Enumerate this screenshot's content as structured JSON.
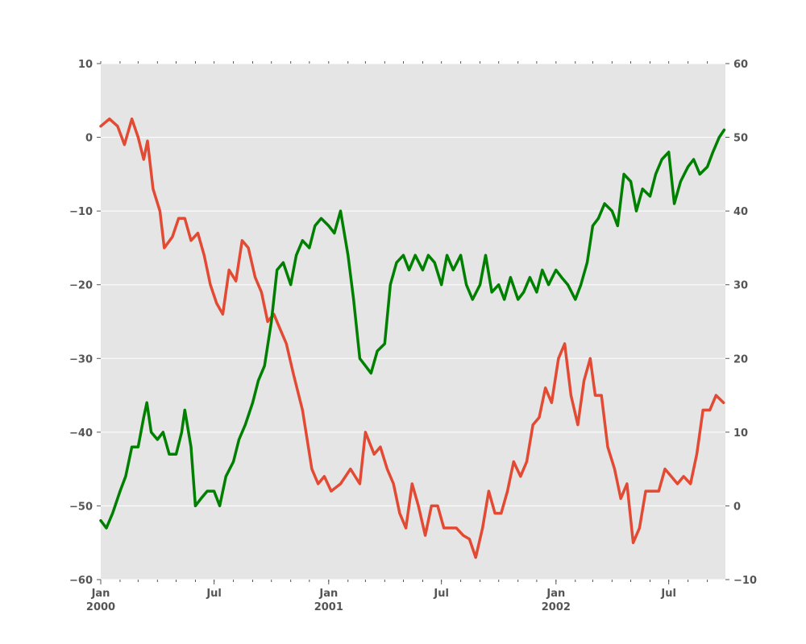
{
  "chart_data": {
    "type": "line",
    "title": "",
    "xlabel": "",
    "ylabel": "",
    "secondary_ylabel": "",
    "x_range": [
      "2000-01-01",
      "2002-09-30"
    ],
    "ylim": [
      -60,
      10
    ],
    "ylim_secondary": [
      -10,
      60
    ],
    "grid": true,
    "background": "#E5E5E5",
    "x_ticks": [
      {
        "date": "2000-01-01",
        "label": "Jan",
        "sublabel": "2000"
      },
      {
        "date": "2000-07-01",
        "label": "Jul",
        "sublabel": ""
      },
      {
        "date": "2001-01-01",
        "label": "Jan",
        "sublabel": "2001"
      },
      {
        "date": "2001-07-01",
        "label": "Jul",
        "sublabel": ""
      },
      {
        "date": "2002-01-01",
        "label": "Jan",
        "sublabel": "2002"
      },
      {
        "date": "2002-07-01",
        "label": "Jul",
        "sublabel": ""
      }
    ],
    "y_ticks_left": [
      10,
      0,
      -10,
      -20,
      -30,
      -40,
      -50,
      -60
    ],
    "y_ticks_right": [
      60,
      50,
      40,
      30,
      20,
      10,
      0,
      -10
    ],
    "series": [
      {
        "axis": "left",
        "color": "#E24A33",
        "points": [
          [
            "2000-01-01",
            1.5
          ],
          [
            "2000-01-15",
            2.5
          ],
          [
            "2000-01-28",
            1.5
          ],
          [
            "2000-02-08",
            -1
          ],
          [
            "2000-02-20",
            2.5
          ],
          [
            "2000-03-01",
            0
          ],
          [
            "2000-03-10",
            -3
          ],
          [
            "2000-03-16",
            -0.5
          ],
          [
            "2000-03-25",
            -7
          ],
          [
            "2000-04-05",
            -10
          ],
          [
            "2000-04-12",
            -15
          ],
          [
            "2000-04-25",
            -13.5
          ],
          [
            "2000-05-05",
            -11
          ],
          [
            "2000-05-15",
            -11
          ],
          [
            "2000-05-25",
            -14
          ],
          [
            "2000-06-05",
            -13
          ],
          [
            "2000-06-15",
            -16
          ],
          [
            "2000-06-25",
            -20
          ],
          [
            "2000-07-05",
            -22.5
          ],
          [
            "2000-07-15",
            -24
          ],
          [
            "2000-07-25",
            -18
          ],
          [
            "2000-08-05",
            -19.5
          ],
          [
            "2000-08-15",
            -14
          ],
          [
            "2000-08-25",
            -15
          ],
          [
            "2000-09-05",
            -19
          ],
          [
            "2000-09-15",
            -21
          ],
          [
            "2000-09-25",
            -25
          ],
          [
            "2000-10-05",
            -24
          ],
          [
            "2000-10-15",
            -26
          ],
          [
            "2000-10-25",
            -28
          ],
          [
            "2000-11-05",
            -32
          ],
          [
            "2000-11-20",
            -37
          ],
          [
            "2000-12-05",
            -45
          ],
          [
            "2000-12-15",
            -47
          ],
          [
            "2000-12-25",
            -46
          ],
          [
            "2001-01-05",
            -48
          ],
          [
            "2001-01-20",
            -47
          ],
          [
            "2001-02-05",
            -45
          ],
          [
            "2001-02-20",
            -47
          ],
          [
            "2001-03-01",
            -40
          ],
          [
            "2001-03-15",
            -43
          ],
          [
            "2001-03-25",
            -42
          ],
          [
            "2001-04-05",
            -45
          ],
          [
            "2001-04-15",
            -47
          ],
          [
            "2001-04-25",
            -51
          ],
          [
            "2001-05-05",
            -53
          ],
          [
            "2001-05-15",
            -47
          ],
          [
            "2001-05-25",
            -50
          ],
          [
            "2001-06-05",
            -54
          ],
          [
            "2001-06-15",
            -50
          ],
          [
            "2001-06-25",
            -50
          ],
          [
            "2001-07-05",
            -53
          ],
          [
            "2001-07-15",
            -53
          ],
          [
            "2001-07-25",
            -53
          ],
          [
            "2001-08-05",
            -54
          ],
          [
            "2001-08-15",
            -54.5
          ],
          [
            "2001-08-25",
            -57
          ],
          [
            "2001-09-05",
            -53
          ],
          [
            "2001-09-15",
            -48
          ],
          [
            "2001-09-25",
            -51
          ],
          [
            "2001-10-05",
            -51
          ],
          [
            "2001-10-15",
            -48
          ],
          [
            "2001-10-25",
            -44
          ],
          [
            "2001-11-05",
            -46
          ],
          [
            "2001-11-15",
            -44
          ],
          [
            "2001-11-25",
            -39
          ],
          [
            "2001-12-05",
            -38
          ],
          [
            "2001-12-15",
            -34
          ],
          [
            "2001-12-25",
            -36
          ],
          [
            "2002-01-05",
            -30
          ],
          [
            "2002-01-15",
            -28
          ],
          [
            "2002-01-25",
            -35
          ],
          [
            "2002-02-05",
            -39
          ],
          [
            "2002-02-15",
            -33
          ],
          [
            "2002-02-25",
            -30
          ],
          [
            "2002-03-05",
            -35
          ],
          [
            "2002-03-15",
            -35
          ],
          [
            "2002-03-25",
            -42
          ],
          [
            "2002-04-05",
            -45
          ],
          [
            "2002-04-15",
            -49
          ],
          [
            "2002-04-25",
            -47
          ],
          [
            "2002-05-05",
            -55
          ],
          [
            "2002-05-15",
            -53
          ],
          [
            "2002-05-25",
            -48
          ],
          [
            "2002-06-05",
            -48
          ],
          [
            "2002-06-15",
            -48
          ],
          [
            "2002-06-25",
            -45
          ],
          [
            "2002-07-05",
            -46
          ],
          [
            "2002-07-15",
            -47
          ],
          [
            "2002-07-25",
            -46
          ],
          [
            "2002-08-05",
            -47
          ],
          [
            "2002-08-15",
            -43
          ],
          [
            "2002-08-25",
            -37
          ],
          [
            "2002-09-05",
            -37
          ],
          [
            "2002-09-15",
            -35
          ],
          [
            "2002-09-27",
            -36
          ]
        ]
      },
      {
        "axis": "right",
        "color": "#008000",
        "points": [
          [
            "2000-01-01",
            -2
          ],
          [
            "2000-01-10",
            -3
          ],
          [
            "2000-01-20",
            -1
          ],
          [
            "2000-02-01",
            2
          ],
          [
            "2000-02-10",
            4
          ],
          [
            "2000-02-20",
            8
          ],
          [
            "2000-03-01",
            8
          ],
          [
            "2000-03-10",
            12
          ],
          [
            "2000-03-15",
            14
          ],
          [
            "2000-03-22",
            10
          ],
          [
            "2000-04-01",
            9
          ],
          [
            "2000-04-10",
            10
          ],
          [
            "2000-04-20",
            7
          ],
          [
            "2000-05-01",
            7
          ],
          [
            "2000-05-10",
            10
          ],
          [
            "2000-05-15",
            13
          ],
          [
            "2000-05-25",
            8
          ],
          [
            "2000-06-01",
            0
          ],
          [
            "2000-06-10",
            1
          ],
          [
            "2000-06-20",
            2
          ],
          [
            "2000-07-01",
            2
          ],
          [
            "2000-07-10",
            0
          ],
          [
            "2000-07-20",
            4
          ],
          [
            "2000-08-01",
            6
          ],
          [
            "2000-08-10",
            9
          ],
          [
            "2000-08-20",
            11
          ],
          [
            "2000-09-01",
            14
          ],
          [
            "2000-09-10",
            17
          ],
          [
            "2000-09-20",
            19
          ],
          [
            "2000-10-01",
            25
          ],
          [
            "2000-10-10",
            32
          ],
          [
            "2000-10-20",
            33
          ],
          [
            "2000-11-01",
            30
          ],
          [
            "2000-11-10",
            34
          ],
          [
            "2000-11-20",
            36
          ],
          [
            "2000-12-01",
            35
          ],
          [
            "2000-12-10",
            38
          ],
          [
            "2000-12-20",
            39
          ],
          [
            "2001-01-01",
            38
          ],
          [
            "2001-01-10",
            37
          ],
          [
            "2001-01-20",
            40
          ],
          [
            "2001-02-01",
            34
          ],
          [
            "2001-02-10",
            28
          ],
          [
            "2001-02-20",
            20
          ],
          [
            "2001-03-01",
            19
          ],
          [
            "2001-03-10",
            18
          ],
          [
            "2001-03-20",
            21
          ],
          [
            "2001-04-01",
            22
          ],
          [
            "2001-04-10",
            30
          ],
          [
            "2001-04-20",
            33
          ],
          [
            "2001-05-01",
            34
          ],
          [
            "2001-05-10",
            32
          ],
          [
            "2001-05-20",
            34
          ],
          [
            "2001-06-01",
            32
          ],
          [
            "2001-06-10",
            34
          ],
          [
            "2001-06-20",
            33
          ],
          [
            "2001-07-01",
            30
          ],
          [
            "2001-07-10",
            34
          ],
          [
            "2001-07-20",
            32
          ],
          [
            "2001-08-01",
            34
          ],
          [
            "2001-08-10",
            30
          ],
          [
            "2001-08-20",
            28
          ],
          [
            "2001-09-01",
            30
          ],
          [
            "2001-09-10",
            34
          ],
          [
            "2001-09-20",
            29
          ],
          [
            "2001-10-01",
            30
          ],
          [
            "2001-10-10",
            28
          ],
          [
            "2001-10-20",
            31
          ],
          [
            "2001-11-01",
            28
          ],
          [
            "2001-11-10",
            29
          ],
          [
            "2001-11-20",
            31
          ],
          [
            "2001-12-01",
            29
          ],
          [
            "2001-12-10",
            32
          ],
          [
            "2001-12-20",
            30
          ],
          [
            "2002-01-01",
            32
          ],
          [
            "2002-01-10",
            31
          ],
          [
            "2002-01-20",
            30
          ],
          [
            "2002-02-01",
            28
          ],
          [
            "2002-02-10",
            30
          ],
          [
            "2002-02-20",
            33
          ],
          [
            "2002-03-01",
            38
          ],
          [
            "2002-03-10",
            39
          ],
          [
            "2002-03-20",
            41
          ],
          [
            "2002-04-01",
            40
          ],
          [
            "2002-04-10",
            38
          ],
          [
            "2002-04-20",
            45
          ],
          [
            "2002-05-01",
            44
          ],
          [
            "2002-05-10",
            40
          ],
          [
            "2002-05-20",
            43
          ],
          [
            "2002-06-01",
            42
          ],
          [
            "2002-06-10",
            45
          ],
          [
            "2002-06-20",
            47
          ],
          [
            "2002-07-01",
            48
          ],
          [
            "2002-07-10",
            41
          ],
          [
            "2002-07-20",
            44
          ],
          [
            "2002-08-01",
            46
          ],
          [
            "2002-08-10",
            47
          ],
          [
            "2002-08-20",
            45
          ],
          [
            "2002-09-01",
            46
          ],
          [
            "2002-09-10",
            48
          ],
          [
            "2002-09-20",
            50
          ],
          [
            "2002-09-28",
            51
          ]
        ]
      }
    ]
  }
}
